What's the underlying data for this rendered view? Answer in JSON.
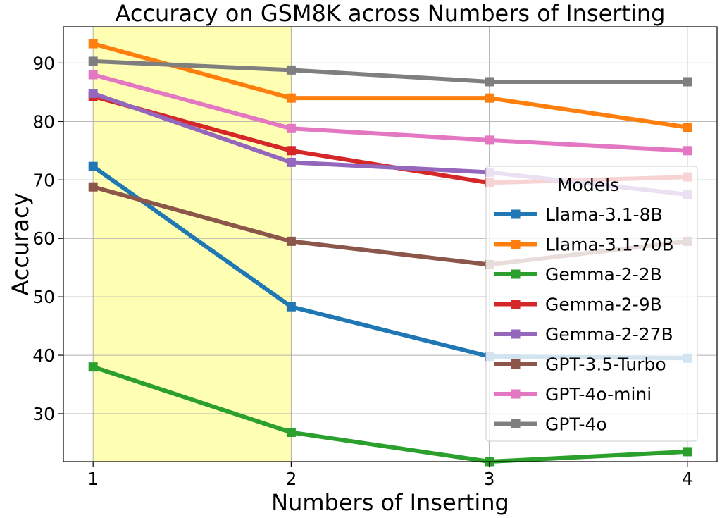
{
  "chart_data": {
    "type": "line",
    "title": "Accuracy on GSM8K across Numbers of Inserting",
    "xlabel": "Numbers of Inserting",
    "ylabel": "Accuracy",
    "x": [
      1,
      2,
      3,
      4
    ],
    "xlim": [
      0.85,
      4.15
    ],
    "ylim": [
      21.8,
      96.2
    ],
    "xticks": [
      1,
      2,
      3,
      4
    ],
    "yticks": [
      30,
      40,
      50,
      60,
      70,
      80,
      90
    ],
    "grid": true,
    "highlight_span": {
      "x": [
        1,
        2
      ],
      "color": "#ffffb3"
    },
    "legend": {
      "title": "Models",
      "placement": "center-right"
    },
    "series": [
      {
        "name": "Llama-3.1-8B",
        "color": "#1f77b4",
        "values": [
          72.3,
          48.3,
          39.8,
          39.5
        ]
      },
      {
        "name": "Llama-3.1-70B",
        "color": "#ff7f0e",
        "values": [
          93.3,
          84.0,
          84.0,
          79.0
        ]
      },
      {
        "name": "Gemma-2-2B",
        "color": "#2ca02c",
        "values": [
          38.0,
          26.8,
          21.8,
          23.5
        ]
      },
      {
        "name": "Gemma-2-9B",
        "color": "#d62728",
        "values": [
          84.3,
          75.0,
          69.5,
          70.5
        ]
      },
      {
        "name": "Gemma-2-27B",
        "color": "#9467bd",
        "values": [
          84.8,
          73.0,
          71.3,
          67.5
        ]
      },
      {
        "name": "GPT-3.5-Turbo",
        "color": "#8c564b",
        "values": [
          68.8,
          59.5,
          55.5,
          59.5
        ]
      },
      {
        "name": "GPT-4o-mini",
        "color": "#e377c2",
        "values": [
          88.0,
          78.8,
          76.8,
          75.0
        ]
      },
      {
        "name": "GPT-4o",
        "color": "#7f7f7f",
        "values": [
          90.3,
          88.8,
          86.8,
          86.8
        ]
      }
    ]
  }
}
